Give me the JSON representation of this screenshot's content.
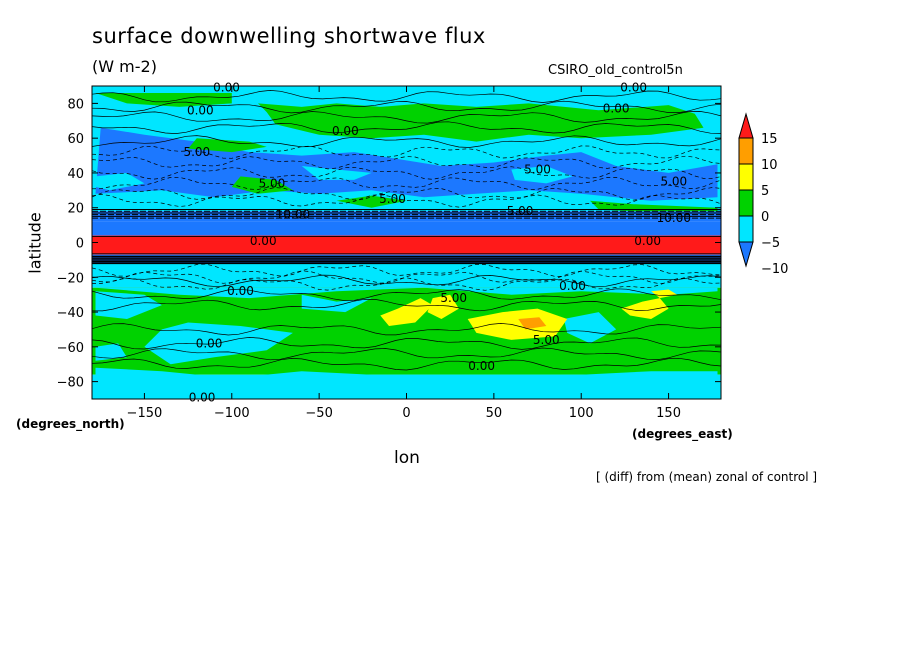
{
  "chart_data": {
    "type": "heatmap",
    "title": "surface downwelling shortwave flux",
    "units": "(W m-2)",
    "model": "CSIRO_old_control5n",
    "xlabel": "lon",
    "ylabel": "latitude",
    "xlabel_unit": "(degrees_east)",
    "ylabel_unit": "(degrees_north)",
    "note": "[ (diff) from (mean) zonal of control ]",
    "xlim": [
      -180,
      180
    ],
    "ylim": [
      -90,
      90
    ],
    "xticks": [
      -150,
      -100,
      -50,
      0,
      50,
      100,
      150
    ],
    "yticks": [
      80,
      60,
      40,
      20,
      0,
      -20,
      -40,
      -60,
      -80
    ],
    "colorbar": {
      "levels": [
        -10,
        -5,
        0,
        5,
        10,
        15
      ],
      "colors": [
        "#1c78ff",
        "#00e6ff",
        "#00d200",
        "#ffff00",
        "#ff9e00",
        "#ff1a1a"
      ],
      "extend": "both"
    },
    "zonal_bands": [
      {
        "lat": [
          70,
          90
        ],
        "value": "-5 to 0"
      },
      {
        "lat": [
          45,
          70
        ],
        "value": "0 to 5 / -5 to 0 mixed"
      },
      {
        "lat": [
          20,
          45
        ],
        "value": "-10 to 0"
      },
      {
        "lat": [
          10,
          18
        ],
        "value": "-10 to -5"
      },
      {
        "lat": [
          3,
          10
        ],
        "value": "-10 to -5"
      },
      {
        "lat": [
          -10,
          3
        ],
        "value": "> 15"
      },
      {
        "lat": [
          -25,
          -10
        ],
        "value": "-5 to 0"
      },
      {
        "lat": [
          -75,
          -25
        ],
        "value": "0 to 5 with patches 5 to 10"
      },
      {
        "lat": [
          -90,
          -75
        ],
        "value": "-5 to 0"
      }
    ],
    "contour_labels": [
      "0.00",
      "0.00",
      "0.00",
      "0.00",
      "0.00",
      "5.00",
      "5.00",
      "5.00",
      "5.00",
      "5.00",
      "5.00",
      "10.00",
      "10.00",
      "0.00",
      "0.00",
      "5.00",
      "5.00",
      "0.00",
      "0.00",
      "0.00",
      "0.00"
    ]
  }
}
